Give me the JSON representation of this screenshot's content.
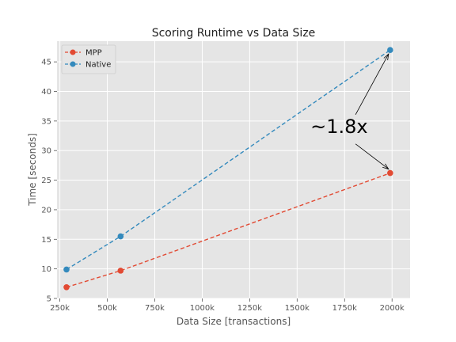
{
  "chart_data": {
    "type": "line",
    "title": "Scoring Runtime vs Data Size",
    "xlabel": "Data Size [transactions]",
    "ylabel": "Time [seconds]",
    "xlim": [
      235000,
      2095000
    ],
    "ylim": [
      5,
      48.5
    ],
    "x_ticks": [
      250000,
      500000,
      750000,
      1000000,
      1250000,
      1500000,
      1750000,
      2000000
    ],
    "x_tick_labels": [
      "250k",
      "500k",
      "750k",
      "1000k",
      "1250k",
      "1500k",
      "1750k",
      "2000k"
    ],
    "y_ticks": [
      5,
      10,
      15,
      20,
      25,
      30,
      35,
      40,
      45
    ],
    "y_tick_labels": [
      "5",
      "10",
      "15",
      "20",
      "25",
      "30",
      "35",
      "40",
      "45"
    ],
    "grid": true,
    "legend": "top-left",
    "series": [
      {
        "name": "MPP",
        "color": "#E24A33",
        "x": [
          285000,
          570000,
          1990000
        ],
        "y": [
          6.9,
          9.7,
          26.2
        ]
      },
      {
        "name": "Native",
        "color": "#348ABD",
        "x": [
          285000,
          570000,
          1990000
        ],
        "y": [
          9.9,
          15.5,
          47.0
        ]
      }
    ],
    "annotation": {
      "text": "~1.8x",
      "text_x": 1570000,
      "text_y": 33.0,
      "arrow_targets": [
        {
          "x": 1990000,
          "y": 47.0
        },
        {
          "x": 1990000,
          "y": 26.2
        }
      ]
    }
  }
}
